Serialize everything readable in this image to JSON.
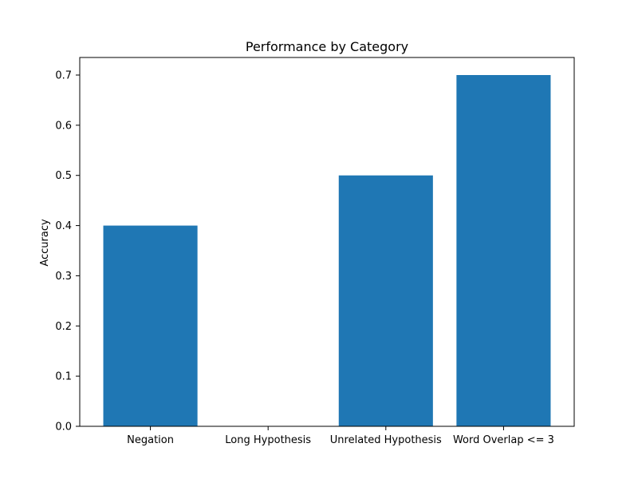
{
  "chart_data": {
    "type": "bar",
    "title": "Performance by Category",
    "xlabel": "",
    "ylabel": "Accuracy",
    "categories": [
      "Negation",
      "Long Hypothesis",
      "Unrelated Hypothesis",
      "Word Overlap <= 3"
    ],
    "values": [
      0.4,
      0.0,
      0.5,
      0.7
    ],
    "ylim": [
      0,
      0.735
    ],
    "yticks": [
      0.0,
      0.1,
      0.2,
      0.3,
      0.4,
      0.5,
      0.6,
      0.7
    ],
    "ytick_labels": [
      "0.0",
      "0.1",
      "0.2",
      "0.3",
      "0.4",
      "0.5",
      "0.6",
      "0.7"
    ],
    "grid": false,
    "bar_color": "#1f77b4"
  }
}
